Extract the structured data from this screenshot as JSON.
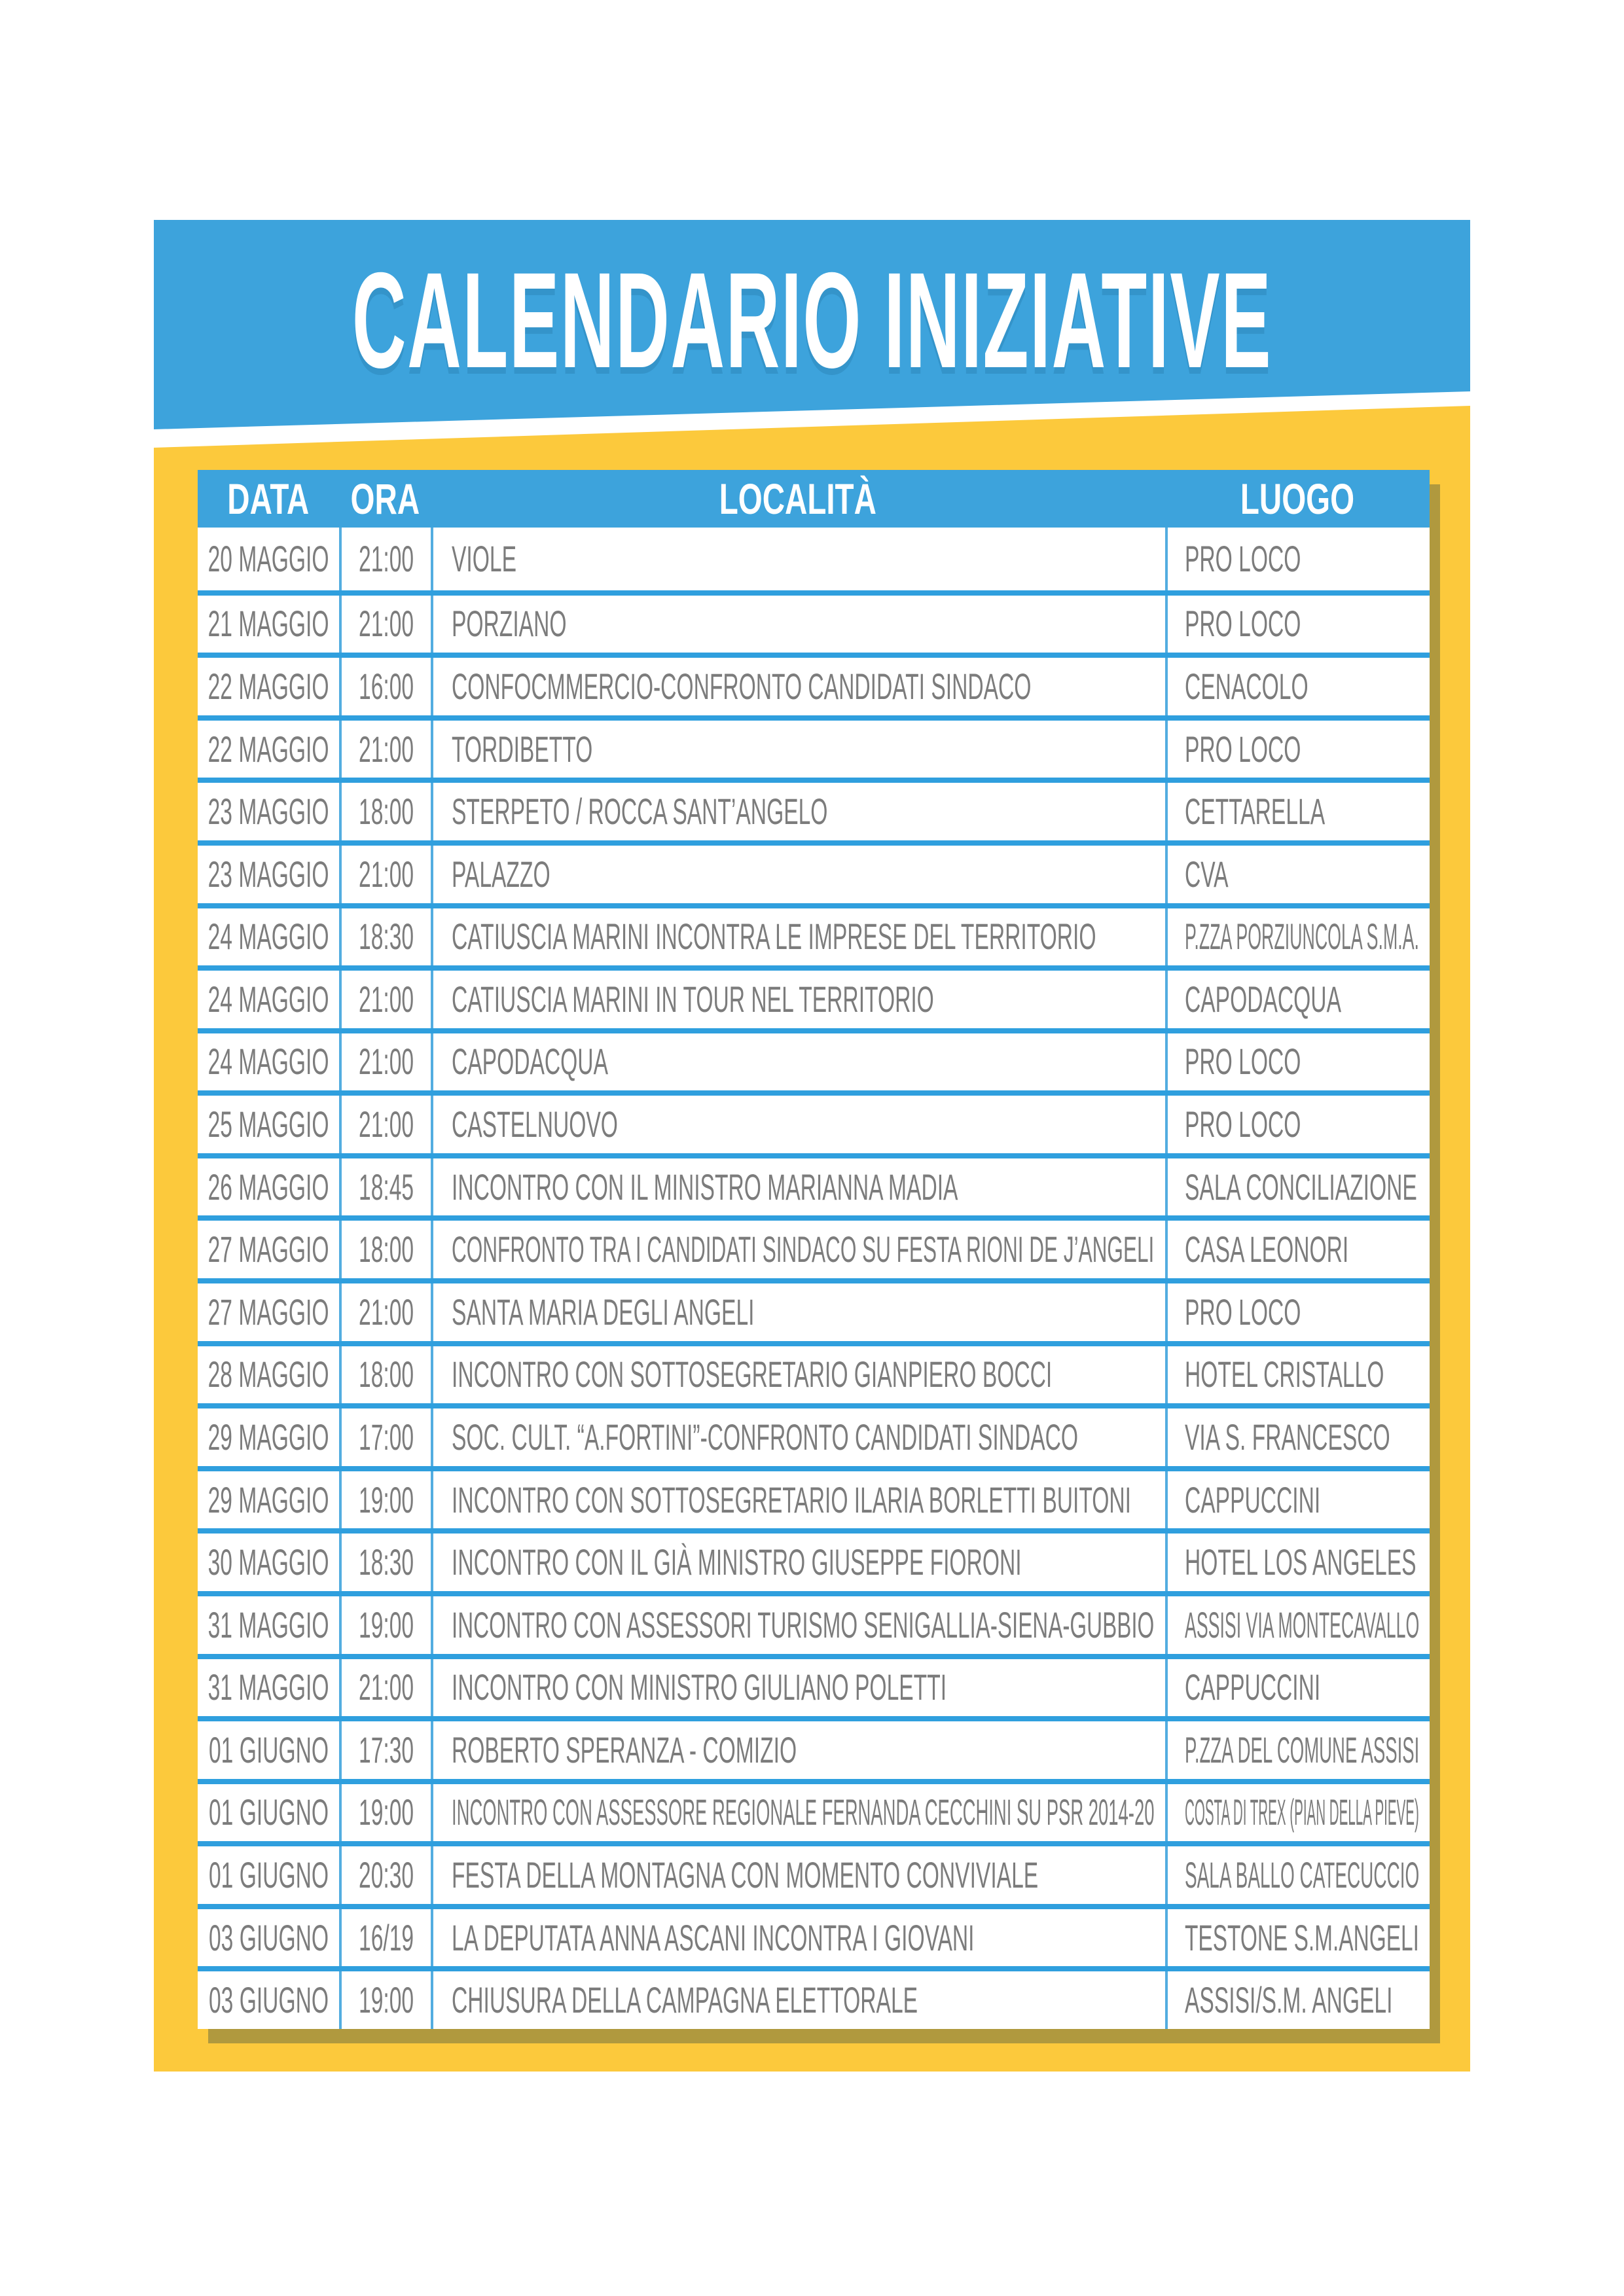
{
  "banner": {
    "title": "CALENDARIO INIZIATIVE"
  },
  "colors": {
    "blue": "#3DA3DC",
    "yellow": "#FCC93C",
    "olive": "#B0993E",
    "gray": "#7C7C7C",
    "separator": "#2F9FDE",
    "border": "#53ADE0"
  },
  "table": {
    "headers": {
      "data": "DATA",
      "ora": "ORA",
      "localita": "LOCALITÀ",
      "luogo": "LUOGO"
    },
    "rows": [
      {
        "data": "20 MAGGIO",
        "ora": "21:00",
        "localita": "VIOLE",
        "luogo": "PRO LOCO"
      },
      {
        "data": "21 MAGGIO",
        "ora": "21:00",
        "localita": "PORZIANO",
        "luogo": "PRO LOCO"
      },
      {
        "data": "22 MAGGIO",
        "ora": "16:00",
        "localita": "CONFOCMMERCIO-CONFRONTO CANDIDATI SINDACO",
        "luogo": "CENACOLO"
      },
      {
        "data": "22 MAGGIO",
        "ora": "21:00",
        "localita": "TORDIBETTO",
        "luogo": "PRO LOCO"
      },
      {
        "data": "23 MAGGIO",
        "ora": "18:00",
        "localita": "STERPETO / ROCCA SANT’ANGELO",
        "luogo": "CETTARELLA"
      },
      {
        "data": "23 MAGGIO",
        "ora": "21:00",
        "localita": "PALAZZO",
        "luogo": "CVA"
      },
      {
        "data": "24 MAGGIO",
        "ora": "18:30",
        "localita": "CATIUSCIA MARINI INCONTRA LE IMPRESE DEL TERRITORIO",
        "luogo": "P.ZZA PORZIUNCOLA S.M.A."
      },
      {
        "data": "24 MAGGIO",
        "ora": "21:00",
        "localita": "CATIUSCIA MARINI IN TOUR NEL TERRITORIO",
        "luogo": "CAPODACQUA"
      },
      {
        "data": "24 MAGGIO",
        "ora": "21:00",
        "localita": "CAPODACQUA",
        "luogo": "PRO LOCO"
      },
      {
        "data": "25 MAGGIO",
        "ora": "21:00",
        "localita": "CASTELNUOVO",
        "luogo": "PRO LOCO"
      },
      {
        "data": "26 MAGGIO",
        "ora": "18:45",
        "localita": "INCONTRO CON IL MINISTRO MARIANNA MADIA",
        "luogo": "SALA CONCILIAZIONE"
      },
      {
        "data": "27 MAGGIO",
        "ora": "18:00",
        "localita": "CONFRONTO TRA I CANDIDATI SINDACO SU FESTA RIONI DE J’ANGELI",
        "luogo": "CASA LEONORI"
      },
      {
        "data": "27 MAGGIO",
        "ora": "21:00",
        "localita": "SANTA MARIA DEGLI ANGELI",
        "luogo": "PRO LOCO"
      },
      {
        "data": "28 MAGGIO",
        "ora": "18:00",
        "localita": "INCONTRO CON SOTTOSEGRETARIO GIANPIERO BOCCI",
        "luogo": "HOTEL CRISTALLO"
      },
      {
        "data": "29 MAGGIO",
        "ora": "17:00",
        "localita": "SOC. CULT. “A.FORTINI”-CONFRONTO CANDIDATI SINDACO",
        "luogo": "VIA S. FRANCESCO"
      },
      {
        "data": "29 MAGGIO",
        "ora": "19:00",
        "localita": "INCONTRO CON SOTTOSEGRETARIO ILARIA BORLETTI BUITONI",
        "luogo": "CAPPUCCINI"
      },
      {
        "data": "30 MAGGIO",
        "ora": "18:30",
        "localita": "INCONTRO CON IL GIÀ MINISTRO GIUSEPPE FIORONI",
        "luogo": "HOTEL LOS ANGELES"
      },
      {
        "data": "31 MAGGIO",
        "ora": "19:00",
        "localita": "INCONTRO CON ASSESSORI TURISMO SENIGALLIA-SIENA-GUBBIO",
        "luogo": "ASSISI VIA MONTECAVALLO"
      },
      {
        "data": "31 MAGGIO",
        "ora": "21:00",
        "localita": "INCONTRO CON MINISTRO GIULIANO POLETTI",
        "luogo": "CAPPUCCINI"
      },
      {
        "data": "01 GIUGNO",
        "ora": "17:30",
        "localita": "ROBERTO SPERANZA - COMIZIO",
        "luogo": "P.ZZA DEL COMUNE ASSISI"
      },
      {
        "data": "01 GIUGNO",
        "ora": "19:00",
        "localita": "INCONTRO CON ASSESSORE REGIONALE FERNANDA CECCHINI SU PSR 2014-20",
        "luogo": "COSTA DI TREX (PIAN DELLA PIEVE)"
      },
      {
        "data": "01 GIUGNO",
        "ora": "20:30",
        "localita": "FESTA DELLA MONTAGNA CON MOMENTO CONVIVIALE",
        "luogo": "SALA BALLO CATECUCCIO"
      },
      {
        "data": "03 GIUGNO",
        "ora": "16/19",
        "localita": "LA DEPUTATA ANNA ASCANI INCONTRA I GIOVANI",
        "luogo": "TESTONE S.M.ANGELI"
      },
      {
        "data": "03 GIUGNO",
        "ora": "19:00",
        "localita": "CHIUSURA DELLA CAMPAGNA ELETTORALE",
        "luogo": "ASSISI/S.M. ANGELI"
      }
    ]
  }
}
